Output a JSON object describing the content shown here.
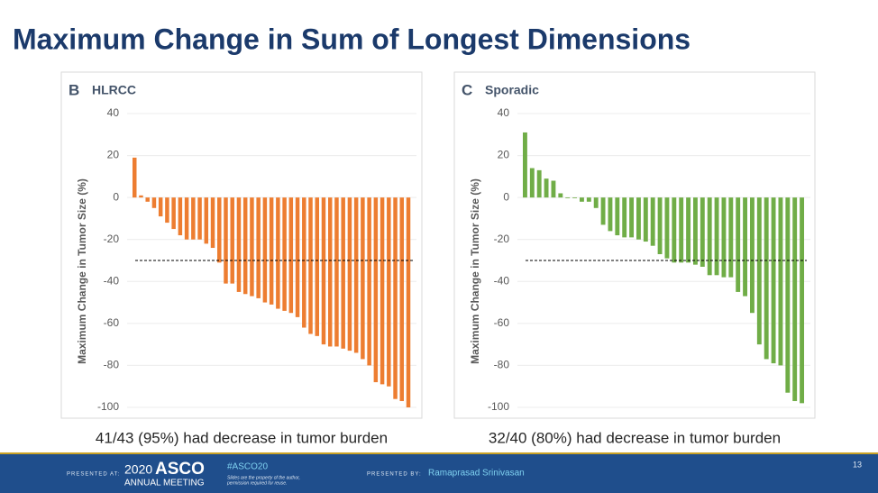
{
  "title": "Maximum Change in Sum of Longest Dimensions",
  "footer": {
    "presented_at": "PRESENTED AT:",
    "year": "2020",
    "brand": "ASCO",
    "meeting": "ANNUAL MEETING",
    "hashtag": "#ASCO20",
    "notice_1": "Slides are the property of the author,",
    "notice_2": "permission required for reuse.",
    "presented_by": "PRESENTED BY:",
    "presenter": "Ramaprasad Srinivasan",
    "page": "13"
  },
  "chart_data": [
    {
      "type": "bar",
      "panel": "B",
      "title": "HLRCC",
      "y_label": "Maximum Change in Tumor Size (%)",
      "color": "#ed7d31",
      "values": [
        19,
        1,
        -2,
        -5,
        -9,
        -12,
        -15,
        -18,
        -20,
        -20,
        -20,
        -22,
        -24,
        -31,
        -41,
        -41,
        -45,
        -46,
        -47,
        -48,
        -50,
        -51,
        -53,
        -54,
        -55,
        -57,
        -62,
        -65,
        -66,
        -70,
        -71,
        -71,
        -72,
        -73,
        -74,
        -77,
        -80,
        -88,
        -89,
        -90,
        -96,
        -97,
        -100
      ],
      "ylim": [
        -100,
        40
      ],
      "yticks": [
        -100,
        -80,
        -60,
        -40,
        -20,
        0,
        20,
        40
      ],
      "grid": true,
      "reference_line": -30,
      "caption": "41/43 (95%) had decrease in tumor burden"
    },
    {
      "type": "bar",
      "panel": "C",
      "title": "Sporadic",
      "y_label": "Maximum Change in Tumor Size (%)",
      "color": "#70ad47",
      "values": [
        31,
        14,
        13,
        9,
        8,
        2,
        0,
        0,
        -2,
        -2,
        -5,
        -13,
        -16,
        -18,
        -19,
        -19,
        -20,
        -21,
        -23,
        -27,
        -29,
        -31,
        -31,
        -31,
        -32,
        -33,
        -37,
        -37,
        -38,
        -38,
        -45,
        -47,
        -55,
        -70,
        -77,
        -79,
        -80,
        -93,
        -97,
        -98
      ],
      "ylim": [
        -100,
        40
      ],
      "yticks": [
        -100,
        -80,
        -60,
        -40,
        -20,
        0,
        20,
        40
      ],
      "grid": true,
      "reference_line": -30,
      "caption": "32/40 (80%) had decrease in tumor burden"
    }
  ]
}
